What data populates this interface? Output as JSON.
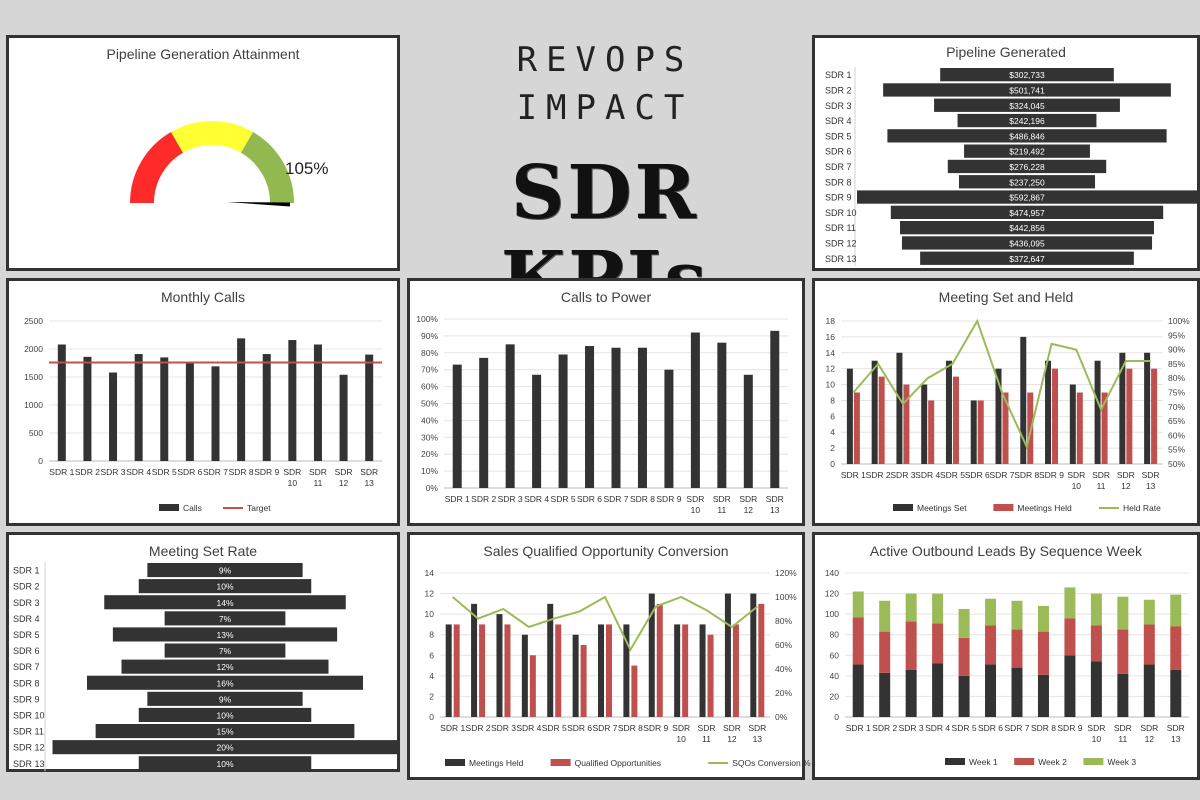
{
  "header": {
    "line1": "REVOPS",
    "line2": "IMPACT",
    "title": "SDR KPIs"
  },
  "colors": {
    "dark": "#333333",
    "red": "#c0504d",
    "green": "#9bbb59",
    "gauge_red": "#ff2b2b",
    "gauge_yellow": "#ffff33",
    "gauge_green": "#92b850"
  },
  "chart_data": [
    {
      "id": "gauge",
      "type": "gauge",
      "title": "Pipeline Generation Attainment",
      "value": 105,
      "value_label": "105%"
    },
    {
      "id": "pipeline",
      "type": "bar",
      "title": "Pipeline Generated",
      "categories": [
        "SDR 1",
        "SDR 2",
        "SDR 3",
        "SDR 4",
        "SDR 5",
        "SDR 6",
        "SDR 7",
        "SDR 8",
        "SDR 9",
        "SDR 10",
        "SDR 11",
        "SDR 12",
        "SDR 13"
      ],
      "values": [
        302733,
        501741,
        324045,
        242196,
        486846,
        219492,
        276228,
        237250,
        592867,
        474957,
        442856,
        436095,
        372647
      ],
      "labels": [
        "$302,733",
        "$501,741",
        "$324,045",
        "$242,196",
        "$486,846",
        "$219,492",
        "$276,228",
        "$237,250",
        "$592,867",
        "$474,957",
        "$442,856",
        "$436,095",
        "$372,647"
      ]
    },
    {
      "id": "monthly_calls",
      "type": "bar",
      "title": "Monthly Calls",
      "categories": [
        "SDR 1",
        "SDR 2",
        "SDR 3",
        "SDR 4",
        "SDR 5",
        "SDR 6",
        "SDR 7",
        "SDR 8",
        "SDR 9",
        "SDR 10",
        "SDR 11",
        "SDR 12",
        "SDR 13"
      ],
      "series": [
        {
          "name": "Calls",
          "values": [
            2080,
            1860,
            1580,
            1910,
            1850,
            1750,
            1690,
            2190,
            1910,
            2160,
            2080,
            1540,
            1900
          ]
        },
        {
          "name": "Target",
          "values": [
            1760,
            1760,
            1760,
            1760,
            1760,
            1760,
            1760,
            1760,
            1760,
            1760,
            1760,
            1760,
            1760
          ]
        }
      ],
      "ylim": [
        0,
        2500
      ],
      "yticks": [
        "0",
        "500",
        "1000",
        "1500",
        "2000",
        "2500"
      ]
    },
    {
      "id": "calls_to_power",
      "type": "bar",
      "title": "Calls to Power",
      "categories": [
        "SDR 1",
        "SDR 2",
        "SDR 3",
        "SDR 4",
        "SDR 5",
        "SDR 6",
        "SDR 7",
        "SDR 8",
        "SDR 9",
        "SDR 10",
        "SDR 11",
        "SDR 12",
        "SDR 13"
      ],
      "values": [
        73,
        77,
        85,
        67,
        79,
        84,
        83,
        83,
        70,
        92,
        86,
        67,
        93
      ],
      "ylim": [
        0,
        100
      ],
      "yticks": [
        "0%",
        "10%",
        "20%",
        "30%",
        "40%",
        "50%",
        "60%",
        "70%",
        "80%",
        "90%",
        "100%"
      ]
    },
    {
      "id": "meeting_set_held",
      "type": "bar",
      "title": "Meeting Set and Held",
      "categories": [
        "SDR 1",
        "SDR 2",
        "SDR 3",
        "SDR 4",
        "SDR 5",
        "SDR 6",
        "SDR 7",
        "SDR 8",
        "SDR 9",
        "SDR 10",
        "SDR 11",
        "SDR 12",
        "SDR 13"
      ],
      "series": [
        {
          "name": "Meetings Set",
          "values": [
            12,
            13,
            14,
            10,
            13,
            8,
            12,
            16,
            13,
            10,
            13,
            14,
            14
          ]
        },
        {
          "name": "Meetings Held",
          "values": [
            9,
            11,
            10,
            8,
            11,
            8,
            9,
            9,
            12,
            9,
            9,
            12,
            12
          ]
        },
        {
          "name": "Held Rate",
          "values": [
            75,
            85,
            71,
            80,
            85,
            100,
            75,
            56,
            92,
            90,
            69,
            86,
            86
          ],
          "axis": "right"
        }
      ],
      "ylim": [
        0,
        18
      ],
      "yticks": [
        "0",
        "2",
        "4",
        "6",
        "8",
        "10",
        "12",
        "14",
        "16",
        "18"
      ],
      "y2lim": [
        50,
        100
      ],
      "y2ticks": [
        "50%",
        "55%",
        "60%",
        "65%",
        "70%",
        "75%",
        "80%",
        "85%",
        "90%",
        "95%",
        "100%"
      ]
    },
    {
      "id": "meeting_set_rate",
      "type": "bar",
      "title": "Meeting Set Rate",
      "categories": [
        "SDR 1",
        "SDR 2",
        "SDR 3",
        "SDR 4",
        "SDR 5",
        "SDR 6",
        "SDR 7",
        "SDR 8",
        "SDR 9",
        "SDR 10",
        "SDR 11",
        "SDR 12",
        "SDR 13"
      ],
      "values": [
        9,
        10,
        14,
        7,
        13,
        7,
        12,
        16,
        9,
        10,
        15,
        20,
        10
      ],
      "labels": [
        "9%",
        "10%",
        "14%",
        "7%",
        "13%",
        "7%",
        "12%",
        "16%",
        "9%",
        "10%",
        "15%",
        "20%",
        "10%"
      ]
    },
    {
      "id": "sqo",
      "type": "bar",
      "title": "Sales Qualified Opportunity Conversion",
      "categories": [
        "SDR 1",
        "SDR 2",
        "SDR 3",
        "SDR 4",
        "SDR 5",
        "SDR 6",
        "SDR 7",
        "SDR 8",
        "SDR 9",
        "SDR 10",
        "SDR 11",
        "SDR 12",
        "SDR 13"
      ],
      "series": [
        {
          "name": "Meetings Held",
          "values": [
            9,
            11,
            10,
            8,
            11,
            8,
            9,
            9,
            12,
            9,
            9,
            12,
            12
          ]
        },
        {
          "name": "Qualified Opportunities",
          "values": [
            9,
            9,
            9,
            6,
            9,
            7,
            9,
            5,
            11,
            9,
            8,
            9,
            11
          ]
        },
        {
          "name": "SQOs Conversion %",
          "values": [
            100,
            82,
            90,
            75,
            82,
            88,
            100,
            56,
            92,
            100,
            89,
            75,
            92
          ],
          "axis": "right"
        }
      ],
      "ylim": [
        0,
        14
      ],
      "yticks": [
        "0",
        "2",
        "4",
        "6",
        "8",
        "10",
        "12",
        "14"
      ],
      "y2lim": [
        0,
        120
      ],
      "y2ticks": [
        "0%",
        "20%",
        "40%",
        "60%",
        "80%",
        "100%",
        "120%"
      ]
    },
    {
      "id": "active_leads",
      "type": "bar",
      "title": "Active Outbound Leads By Sequence Week",
      "categories": [
        "SDR 1",
        "SDR 2",
        "SDR 3",
        "SDR 4",
        "SDR 5",
        "SDR 6",
        "SDR 7",
        "SDR 8",
        "SDR 9",
        "SDR 10",
        "SDR 11",
        "SDR 12",
        "SDR 13"
      ],
      "series": [
        {
          "name": "Week 1",
          "values": [
            51,
            43,
            46,
            52,
            40,
            51,
            48,
            41,
            60,
            54,
            42,
            51,
            46
          ]
        },
        {
          "name": "Week 2",
          "values": [
            46,
            40,
            47,
            39,
            37,
            38,
            37,
            42,
            36,
            35,
            43,
            39,
            42
          ]
        },
        {
          "name": "Week 3",
          "values": [
            25,
            30,
            27,
            29,
            28,
            26,
            28,
            25,
            30,
            31,
            32,
            24,
            31
          ]
        }
      ],
      "ylim": [
        0,
        140
      ],
      "yticks": [
        "0",
        "20",
        "40",
        "60",
        "80",
        "100",
        "120",
        "140"
      ]
    }
  ]
}
